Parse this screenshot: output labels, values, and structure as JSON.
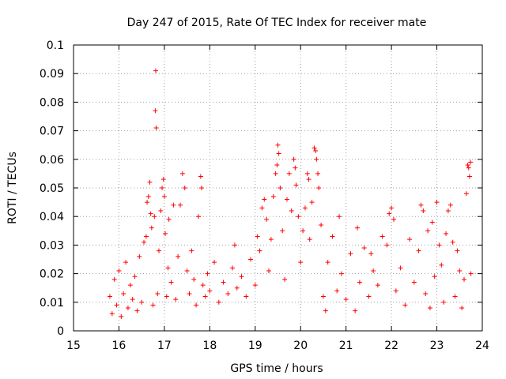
{
  "chart_data": {
    "type": "scatter",
    "title": "Day 247 of 2015, Rate Of TEC Index for receiver mate",
    "xlabel": "GPS time / hours",
    "ylabel": "ROTI / TECUs",
    "xlim": [
      15,
      24
    ],
    "ylim": [
      0,
      0.1
    ],
    "xticks": [
      "15",
      "16",
      "17",
      "18",
      "19",
      "20",
      "21",
      "22",
      "23",
      "24"
    ],
    "yticks": [
      "0",
      "0.01",
      "0.02",
      "0.03",
      "0.04",
      "0.05",
      "0.06",
      "0.07",
      "0.08",
      "0.09",
      "0.1"
    ],
    "grid": true,
    "marker": "+",
    "color": "#ff0000",
    "series": [
      {
        "name": "ROTI",
        "points": [
          [
            15.8,
            0.012
          ],
          [
            15.85,
            0.006
          ],
          [
            15.9,
            0.018
          ],
          [
            15.95,
            0.009
          ],
          [
            16.0,
            0.021
          ],
          [
            16.05,
            0.005
          ],
          [
            16.1,
            0.013
          ],
          [
            16.15,
            0.024
          ],
          [
            16.2,
            0.008
          ],
          [
            16.25,
            0.016
          ],
          [
            16.3,
            0.011
          ],
          [
            16.35,
            0.019
          ],
          [
            16.4,
            0.007
          ],
          [
            16.45,
            0.026
          ],
          [
            16.5,
            0.01
          ],
          [
            16.55,
            0.031
          ],
          [
            16.6,
            0.033
          ],
          [
            16.62,
            0.045
          ],
          [
            16.65,
            0.047
          ],
          [
            16.68,
            0.052
          ],
          [
            16.7,
            0.041
          ],
          [
            16.72,
            0.036
          ],
          [
            16.75,
            0.009
          ],
          [
            16.78,
            0.04
          ],
          [
            16.8,
            0.077
          ],
          [
            16.81,
            0.091
          ],
          [
            16.82,
            0.071
          ],
          [
            16.85,
            0.013
          ],
          [
            16.88,
            0.028
          ],
          [
            16.92,
            0.042
          ],
          [
            16.95,
            0.05
          ],
          [
            16.98,
            0.053
          ],
          [
            17.0,
            0.047
          ],
          [
            17.02,
            0.034
          ],
          [
            17.05,
            0.012
          ],
          [
            17.08,
            0.022
          ],
          [
            17.1,
            0.039
          ],
          [
            17.15,
            0.017
          ],
          [
            17.2,
            0.044
          ],
          [
            17.25,
            0.011
          ],
          [
            17.3,
            0.026
          ],
          [
            17.35,
            0.044
          ],
          [
            17.4,
            0.055
          ],
          [
            17.45,
            0.05
          ],
          [
            17.5,
            0.021
          ],
          [
            17.55,
            0.013
          ],
          [
            17.6,
            0.028
          ],
          [
            17.65,
            0.018
          ],
          [
            17.7,
            0.009
          ],
          [
            17.75,
            0.04
          ],
          [
            17.8,
            0.054
          ],
          [
            17.82,
            0.05
          ],
          [
            17.85,
            0.016
          ],
          [
            17.9,
            0.012
          ],
          [
            17.95,
            0.02
          ],
          [
            18.0,
            0.014
          ],
          [
            18.1,
            0.024
          ],
          [
            18.2,
            0.01
          ],
          [
            18.3,
            0.017
          ],
          [
            18.4,
            0.013
          ],
          [
            18.5,
            0.022
          ],
          [
            18.55,
            0.03
          ],
          [
            18.6,
            0.015
          ],
          [
            18.7,
            0.019
          ],
          [
            18.8,
            0.012
          ],
          [
            18.9,
            0.025
          ],
          [
            19.0,
            0.016
          ],
          [
            19.05,
            0.033
          ],
          [
            19.1,
            0.028
          ],
          [
            19.15,
            0.043
          ],
          [
            19.2,
            0.046
          ],
          [
            19.25,
            0.039
          ],
          [
            19.3,
            0.021
          ],
          [
            19.35,
            0.032
          ],
          [
            19.4,
            0.047
          ],
          [
            19.45,
            0.055
          ],
          [
            19.48,
            0.058
          ],
          [
            19.5,
            0.065
          ],
          [
            19.52,
            0.062
          ],
          [
            19.55,
            0.05
          ],
          [
            19.6,
            0.035
          ],
          [
            19.65,
            0.018
          ],
          [
            19.7,
            0.046
          ],
          [
            19.75,
            0.055
          ],
          [
            19.8,
            0.042
          ],
          [
            19.85,
            0.06
          ],
          [
            19.88,
            0.057
          ],
          [
            19.9,
            0.051
          ],
          [
            19.95,
            0.04
          ],
          [
            20.0,
            0.024
          ],
          [
            20.05,
            0.035
          ],
          [
            20.1,
            0.043
          ],
          [
            20.15,
            0.055
          ],
          [
            20.18,
            0.053
          ],
          [
            20.2,
            0.032
          ],
          [
            20.25,
            0.045
          ],
          [
            20.3,
            0.064
          ],
          [
            20.33,
            0.063
          ],
          [
            20.35,
            0.06
          ],
          [
            20.38,
            0.055
          ],
          [
            20.4,
            0.05
          ],
          [
            20.45,
            0.037
          ],
          [
            20.5,
            0.012
          ],
          [
            20.55,
            0.007
          ],
          [
            20.6,
            0.024
          ],
          [
            20.7,
            0.033
          ],
          [
            20.8,
            0.014
          ],
          [
            20.85,
            0.04
          ],
          [
            20.9,
            0.02
          ],
          [
            21.0,
            0.011
          ],
          [
            21.1,
            0.027
          ],
          [
            21.2,
            0.007
          ],
          [
            21.25,
            0.036
          ],
          [
            21.3,
            0.017
          ],
          [
            21.4,
            0.029
          ],
          [
            21.5,
            0.012
          ],
          [
            21.55,
            0.027
          ],
          [
            21.6,
            0.021
          ],
          [
            21.7,
            0.016
          ],
          [
            21.8,
            0.033
          ],
          [
            21.9,
            0.03
          ],
          [
            21.95,
            0.041
          ],
          [
            22.0,
            0.043
          ],
          [
            22.05,
            0.039
          ],
          [
            22.1,
            0.014
          ],
          [
            22.2,
            0.022
          ],
          [
            22.3,
            0.009
          ],
          [
            22.4,
            0.032
          ],
          [
            22.5,
            0.017
          ],
          [
            22.6,
            0.028
          ],
          [
            22.65,
            0.044
          ],
          [
            22.7,
            0.042
          ],
          [
            22.75,
            0.013
          ],
          [
            22.8,
            0.035
          ],
          [
            22.85,
            0.008
          ],
          [
            22.9,
            0.038
          ],
          [
            22.95,
            0.019
          ],
          [
            23.0,
            0.045
          ],
          [
            23.05,
            0.03
          ],
          [
            23.1,
            0.023
          ],
          [
            23.15,
            0.01
          ],
          [
            23.2,
            0.034
          ],
          [
            23.25,
            0.042
          ],
          [
            23.3,
            0.044
          ],
          [
            23.35,
            0.031
          ],
          [
            23.4,
            0.012
          ],
          [
            23.45,
            0.028
          ],
          [
            23.5,
            0.021
          ],
          [
            23.55,
            0.008
          ],
          [
            23.6,
            0.018
          ],
          [
            23.65,
            0.048
          ],
          [
            23.68,
            0.058
          ],
          [
            23.7,
            0.057
          ],
          [
            23.72,
            0.054
          ],
          [
            23.74,
            0.059
          ],
          [
            23.75,
            0.02
          ]
        ]
      }
    ]
  }
}
